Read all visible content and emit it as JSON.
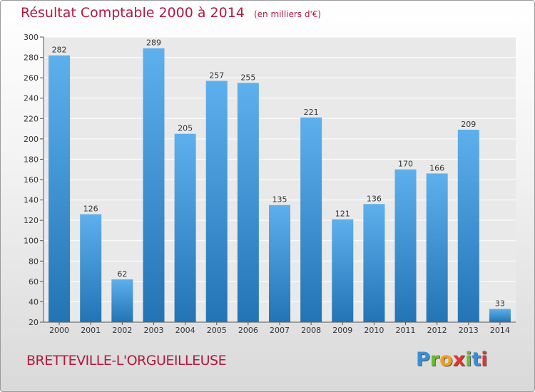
{
  "title": "Résultat Comptable 2000 à 2014",
  "unit_label": "(en milliers d'€)",
  "commune": "BRETTEVILLE-L'ORGUEILLEUSE",
  "logo": {
    "letters": [
      "P",
      "r",
      "o",
      "x",
      "i",
      "t",
      "i"
    ],
    "colors": [
      "#3a8fd4",
      "#6bbd2a",
      "#f0a01e",
      "#e3342f",
      "#6bbd2a",
      "#3a8fd4",
      "#e3342f"
    ]
  },
  "chart_data": {
    "type": "bar",
    "title": "Résultat Comptable 2000 à 2014",
    "xlabel": "",
    "ylabel": "",
    "ylim": [
      20,
      300
    ],
    "yticks": [
      20,
      40,
      60,
      80,
      100,
      120,
      140,
      160,
      180,
      200,
      220,
      240,
      260,
      280,
      300
    ],
    "categories": [
      "2000",
      "2001",
      "2002",
      "2003",
      "2004",
      "2005",
      "2006",
      "2007",
      "2008",
      "2009",
      "2010",
      "2011",
      "2012",
      "2013",
      "2014"
    ],
    "values": [
      282,
      126,
      62,
      289,
      205,
      257,
      255,
      135,
      221,
      121,
      136,
      170,
      166,
      209,
      33
    ],
    "grid": true,
    "bar_color": "#3a8fd6"
  }
}
